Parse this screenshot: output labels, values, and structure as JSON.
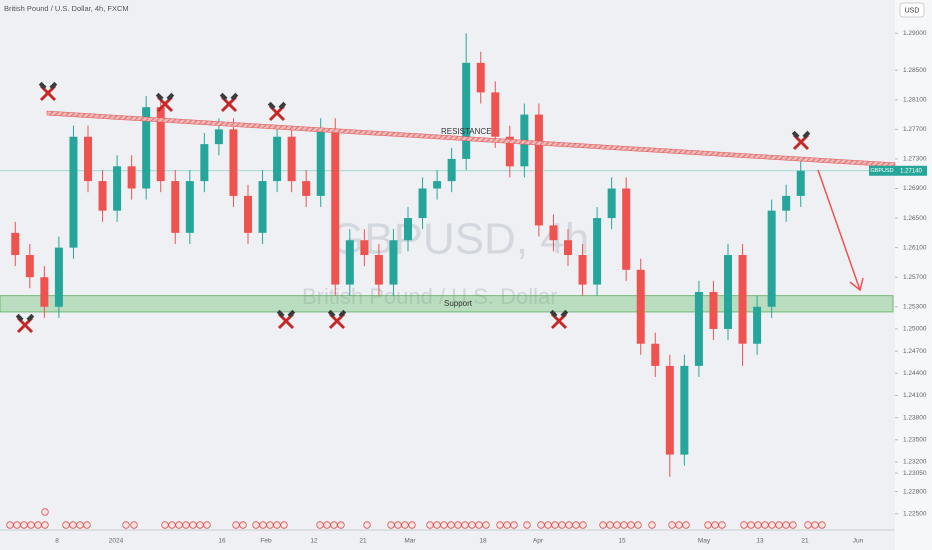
{
  "chart_data": {
    "type": "candlestick",
    "title": "British Pound / U.S. Dollar, 4h, FXCM",
    "watermark": "GBPUSD, 4h",
    "watermark_subtitle": "British Pound / U.S. Dollar",
    "currency_button": "USD",
    "symbol_label": "GBPUSD",
    "last_price": {
      "value": 1.2714,
      "label": "1.27140"
    },
    "up_color": "#26a69a",
    "down_color": "#ef5350",
    "ylim": [
      1.2228,
      1.2945
    ],
    "yticks": [
      {
        "value": 1.29,
        "label": "1.29000"
      },
      {
        "value": 1.285,
        "label": "1.28500"
      },
      {
        "value": 1.281,
        "label": "1.28100"
      },
      {
        "value": 1.277,
        "label": "1.27700"
      },
      {
        "value": 1.273,
        "label": "1.27300"
      },
      {
        "value": 1.269,
        "label": "1.26900"
      },
      {
        "value": 1.265,
        "label": "1.26500"
      },
      {
        "value": 1.261,
        "label": "1.26100"
      },
      {
        "value": 1.257,
        "label": "1.25700"
      },
      {
        "value": 1.253,
        "label": "1.25300"
      },
      {
        "value": 1.25,
        "label": "1.25000"
      },
      {
        "value": 1.247,
        "label": "1.24700"
      },
      {
        "value": 1.244,
        "label": "1.24400"
      },
      {
        "value": 1.241,
        "label": "1.24100"
      },
      {
        "value": 1.238,
        "label": "1.23800"
      },
      {
        "value": 1.235,
        "label": "1.23500"
      },
      {
        "value": 1.232,
        "label": "1.23200"
      },
      {
        "value": 1.2305,
        "label": "1.23050"
      },
      {
        "value": 1.228,
        "label": "1.22800"
      },
      {
        "value": 1.225,
        "label": "1.22500"
      }
    ],
    "xlabels": [
      "8",
      "2024",
      "16",
      "Feb",
      "12",
      "21",
      "Mar",
      "18",
      "Apr",
      "15",
      "May",
      "13",
      "21",
      "Jun"
    ],
    "resistance": {
      "label": "RESISTANCE",
      "start": 1.2792,
      "end": 1.2722
    },
    "support": {
      "label": "Support",
      "top": 1.2545,
      "bottom": 1.2523
    },
    "candles": [
      {
        "o": 1.263,
        "h": 1.2645,
        "l": 1.2585,
        "c": 1.26
      },
      {
        "o": 1.26,
        "h": 1.2615,
        "l": 1.2555,
        "c": 1.257
      },
      {
        "o": 1.257,
        "h": 1.2585,
        "l": 1.2515,
        "c": 1.253
      },
      {
        "o": 1.253,
        "h": 1.2625,
        "l": 1.2515,
        "c": 1.261
      },
      {
        "o": 1.261,
        "h": 1.2775,
        "l": 1.2595,
        "c": 1.276
      },
      {
        "o": 1.276,
        "h": 1.2775,
        "l": 1.2685,
        "c": 1.27
      },
      {
        "o": 1.27,
        "h": 1.2715,
        "l": 1.2645,
        "c": 1.266
      },
      {
        "o": 1.266,
        "h": 1.2735,
        "l": 1.2645,
        "c": 1.272
      },
      {
        "o": 1.272,
        "h": 1.2735,
        "l": 1.2675,
        "c": 1.269
      },
      {
        "o": 1.269,
        "h": 1.2815,
        "l": 1.2675,
        "c": 1.28
      },
      {
        "o": 1.28,
        "h": 1.2815,
        "l": 1.2685,
        "c": 1.27
      },
      {
        "o": 1.27,
        "h": 1.2715,
        "l": 1.2615,
        "c": 1.263
      },
      {
        "o": 1.263,
        "h": 1.2715,
        "l": 1.2615,
        "c": 1.27
      },
      {
        "o": 1.27,
        "h": 1.2765,
        "l": 1.2685,
        "c": 1.275
      },
      {
        "o": 1.275,
        "h": 1.2785,
        "l": 1.2735,
        "c": 1.277
      },
      {
        "o": 1.277,
        "h": 1.2785,
        "l": 1.2665,
        "c": 1.268
      },
      {
        "o": 1.268,
        "h": 1.2695,
        "l": 1.2615,
        "c": 1.263
      },
      {
        "o": 1.263,
        "h": 1.2715,
        "l": 1.2615,
        "c": 1.27
      },
      {
        "o": 1.27,
        "h": 1.2775,
        "l": 1.2685,
        "c": 1.276
      },
      {
        "o": 1.276,
        "h": 1.2775,
        "l": 1.2685,
        "c": 1.27
      },
      {
        "o": 1.27,
        "h": 1.2715,
        "l": 1.2665,
        "c": 1.268
      },
      {
        "o": 1.268,
        "h": 1.2785,
        "l": 1.2665,
        "c": 1.277
      },
      {
        "o": 1.277,
        "h": 1.2785,
        "l": 1.2545,
        "c": 1.256
      },
      {
        "o": 1.256,
        "h": 1.2635,
        "l": 1.2545,
        "c": 1.262
      },
      {
        "o": 1.262,
        "h": 1.2635,
        "l": 1.2585,
        "c": 1.26
      },
      {
        "o": 1.26,
        "h": 1.2615,
        "l": 1.2545,
        "c": 1.256
      },
      {
        "o": 1.256,
        "h": 1.2635,
        "l": 1.2545,
        "c": 1.262
      },
      {
        "o": 1.262,
        "h": 1.2665,
        "l": 1.2605,
        "c": 1.265
      },
      {
        "o": 1.265,
        "h": 1.2705,
        "l": 1.2635,
        "c": 1.269
      },
      {
        "o": 1.269,
        "h": 1.2715,
        "l": 1.2675,
        "c": 1.27
      },
      {
        "o": 1.27,
        "h": 1.2745,
        "l": 1.2685,
        "c": 1.273
      },
      {
        "o": 1.273,
        "h": 1.29,
        "l": 1.2715,
        "c": 1.286
      },
      {
        "o": 1.286,
        "h": 1.2875,
        "l": 1.2805,
        "c": 1.282
      },
      {
        "o": 1.282,
        "h": 1.2835,
        "l": 1.2745,
        "c": 1.276
      },
      {
        "o": 1.276,
        "h": 1.2775,
        "l": 1.2705,
        "c": 1.272
      },
      {
        "o": 1.272,
        "h": 1.2805,
        "l": 1.2705,
        "c": 1.279
      },
      {
        "o": 1.279,
        "h": 1.2805,
        "l": 1.2625,
        "c": 1.264
      },
      {
        "o": 1.264,
        "h": 1.2655,
        "l": 1.2605,
        "c": 1.262
      },
      {
        "o": 1.262,
        "h": 1.2635,
        "l": 1.2585,
        "c": 1.26
      },
      {
        "o": 1.26,
        "h": 1.2615,
        "l": 1.2545,
        "c": 1.256
      },
      {
        "o": 1.256,
        "h": 1.2665,
        "l": 1.2545,
        "c": 1.265
      },
      {
        "o": 1.265,
        "h": 1.2705,
        "l": 1.2635,
        "c": 1.269
      },
      {
        "o": 1.269,
        "h": 1.2705,
        "l": 1.2565,
        "c": 1.258
      },
      {
        "o": 1.258,
        "h": 1.2595,
        "l": 1.2465,
        "c": 1.248
      },
      {
        "o": 1.248,
        "h": 1.2495,
        "l": 1.2435,
        "c": 1.245
      },
      {
        "o": 1.245,
        "h": 1.2465,
        "l": 1.23,
        "c": 1.233
      },
      {
        "o": 1.233,
        "h": 1.2465,
        "l": 1.2315,
        "c": 1.245
      },
      {
        "o": 1.245,
        "h": 1.2565,
        "l": 1.2435,
        "c": 1.255
      },
      {
        "o": 1.255,
        "h": 1.2565,
        "l": 1.2485,
        "c": 1.25
      },
      {
        "o": 1.25,
        "h": 1.2615,
        "l": 1.2485,
        "c": 1.26
      },
      {
        "o": 1.26,
        "h": 1.2615,
        "l": 1.245,
        "c": 1.248
      },
      {
        "o": 1.248,
        "h": 1.2545,
        "l": 1.2465,
        "c": 1.253
      },
      {
        "o": 1.253,
        "h": 1.2675,
        "l": 1.2515,
        "c": 1.266
      },
      {
        "o": 1.266,
        "h": 1.2695,
        "l": 1.2645,
        "c": 1.268
      },
      {
        "o": 1.268,
        "h": 1.2729,
        "l": 1.2665,
        "c": 1.2714
      }
    ]
  }
}
